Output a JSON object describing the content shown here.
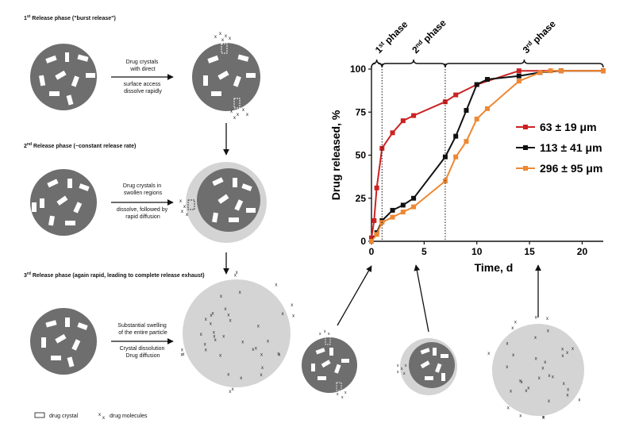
{
  "left_panel": {
    "phase1": {
      "title_pre": "1",
      "title_sup": "st",
      "title_post": " Release phase (\"burst release\")",
      "arrow_lines": [
        "Drug crystals",
        "with direct"
      ],
      "below_lines": [
        "surface access",
        "dissolve rapidly"
      ]
    },
    "phase2": {
      "title_pre": "2",
      "title_sup": "nd",
      "title_post": " Release phase (~constant release rate)",
      "arrow_lines": [
        "Drug crystals in",
        "swollen regions"
      ],
      "below_lines": [
        "dissolve, followed by",
        "rapid diffusion"
      ]
    },
    "phase3": {
      "title_pre": "3",
      "title_sup": "rd",
      "title_post": " Release phase (again rapid, leading to complete release exhaust)",
      "arrow_lines": [
        "Substantial swelling",
        "of the entire particle"
      ],
      "below_lines": [
        "Crystal dissolution",
        "Drug diffusion"
      ]
    },
    "legend": {
      "crystal": "drug crystal",
      "molecules": "drug molecules"
    }
  },
  "chart_data": {
    "type": "line",
    "xlabel": "Time, d",
    "ylabel": "Drug released, %",
    "xlim": [
      0,
      22
    ],
    "ylim": [
      0,
      100
    ],
    "xticks": [
      0,
      5,
      10,
      15,
      20
    ],
    "yticks": [
      0,
      25,
      50,
      75,
      100
    ],
    "phase_boundaries": [
      1,
      7
    ],
    "phase_labels": [
      {
        "pre": "1",
        "sup": "st",
        "post": " phase"
      },
      {
        "pre": "2",
        "sup": "nd",
        "post": " phase"
      },
      {
        "pre": "3",
        "sup": "rd",
        "post": " phase"
      }
    ],
    "series": [
      {
        "name": "63 ± 19 μm",
        "color": "#cc2222",
        "x": [
          0,
          0.25,
          0.5,
          1,
          2,
          3,
          4,
          7,
          8,
          10,
          14,
          18,
          22
        ],
        "y": [
          2,
          12,
          31,
          54,
          63,
          70,
          73,
          81,
          85,
          91,
          99,
          99,
          99
        ]
      },
      {
        "name": "113 ± 41 μm",
        "color": "#111111",
        "x": [
          0,
          0.5,
          1,
          2,
          3,
          4,
          7,
          8,
          9,
          10,
          11,
          14,
          16,
          18,
          22
        ],
        "y": [
          0,
          5,
          12,
          18,
          21,
          25,
          49,
          61,
          76,
          91,
          94,
          96,
          98,
          99,
          99
        ]
      },
      {
        "name": "296 ± 95 μm",
        "color": "#ee8833",
        "x": [
          0,
          0.5,
          1,
          2,
          3,
          4,
          7,
          8,
          9,
          10,
          11,
          14,
          16,
          17,
          18,
          22
        ],
        "y": [
          0,
          4,
          11,
          14,
          17,
          20,
          35,
          49,
          58,
          71,
          77,
          93,
          98,
          99,
          99,
          99
        ]
      }
    ]
  }
}
